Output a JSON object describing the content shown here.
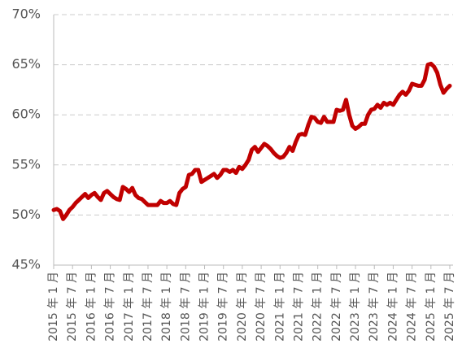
{
  "chart_data": {
    "type": "line",
    "categories": [
      "2015 年 1 月",
      null,
      null,
      null,
      null,
      null,
      "2015 年 7 月",
      null,
      null,
      null,
      null,
      null,
      "2016 年 1 月",
      null,
      null,
      null,
      null,
      null,
      "2016 年 7 月",
      null,
      null,
      null,
      null,
      null,
      "2017 年 1 月",
      null,
      null,
      null,
      null,
      null,
      "2017 年 7 月",
      null,
      null,
      null,
      null,
      null,
      "2018 年 1 月",
      null,
      null,
      null,
      null,
      null,
      "2018 年 7 月",
      null,
      null,
      null,
      null,
      null,
      "2019 年 1 月",
      null,
      null,
      null,
      null,
      null,
      "2019 年 7 月",
      null,
      null,
      null,
      null,
      null,
      "2020 年 1 月",
      null,
      null,
      null,
      null,
      null,
      "2020 年 7 月",
      null,
      null,
      null,
      null,
      null,
      "2021 年 1 月",
      null,
      null,
      null,
      null,
      null,
      "2021 年 7 月",
      null,
      null,
      null,
      null,
      null,
      "2022 年 1 月",
      null,
      null,
      null,
      null,
      null,
      "2022 年 7 月",
      null,
      null,
      null,
      null,
      null,
      "2023 年 1 月",
      null,
      null,
      null,
      null,
      null,
      "2023 年 7 月",
      null,
      null,
      null,
      null,
      null,
      "2024 年 1 月",
      null,
      null,
      null,
      null,
      null,
      "2024 年 7 月",
      null,
      null,
      null,
      null,
      null,
      "2025 年 1 月",
      null,
      null,
      null,
      null,
      null,
      "2025 年 7 月"
    ],
    "values": [
      50.5,
      50.6,
      50.4,
      49.6,
      50.0,
      50.5,
      50.8,
      51.2,
      51.5,
      51.8,
      52.1,
      51.7,
      52.0,
      52.2,
      51.8,
      51.5,
      52.2,
      52.4,
      52.1,
      51.8,
      51.6,
      51.5,
      52.8,
      52.6,
      52.3,
      52.7,
      52.0,
      51.7,
      51.6,
      51.3,
      51.0,
      51.0,
      51.0,
      51.0,
      51.4,
      51.2,
      51.2,
      51.4,
      51.1,
      51.0,
      52.2,
      52.6,
      52.8,
      54.0,
      54.1,
      54.5,
      54.5,
      53.3,
      53.5,
      53.7,
      53.9,
      54.1,
      53.7,
      54.0,
      54.5,
      54.5,
      54.3,
      54.5,
      54.2,
      54.8,
      54.6,
      55.0,
      55.5,
      56.5,
      56.8,
      56.3,
      56.7,
      57.1,
      56.9,
      56.6,
      56.2,
      55.9,
      55.7,
      55.8,
      56.2,
      56.8,
      56.4,
      57.3,
      58.0,
      58.1,
      58.0,
      59.0,
      59.8,
      59.7,
      59.3,
      59.2,
      59.8,
      59.3,
      59.3,
      59.3,
      60.5,
      60.4,
      60.5,
      61.5,
      60.0,
      58.9,
      58.6,
      58.8,
      59.1,
      59.1,
      60.0,
      60.5,
      60.6,
      61.0,
      60.7,
      61.2,
      61.0,
      61.2,
      61.0,
      61.5,
      62.0,
      62.3,
      62.0,
      62.4,
      63.1,
      63.0,
      62.9,
      62.9,
      63.5,
      65.0,
      65.1,
      64.8,
      64.2,
      63.0,
      62.2,
      62.6,
      62.9
    ],
    "color": "#c00000",
    "ylim": [
      45,
      70
    ],
    "yticks": [
      {
        "value": 45,
        "label": "45%"
      },
      {
        "value": 50,
        "label": "50%"
      },
      {
        "value": 55,
        "label": "55%"
      },
      {
        "value": 60,
        "label": "60%"
      },
      {
        "value": 65,
        "label": "65%"
      },
      {
        "value": 70,
        "label": "70%"
      }
    ],
    "grid": true
  }
}
